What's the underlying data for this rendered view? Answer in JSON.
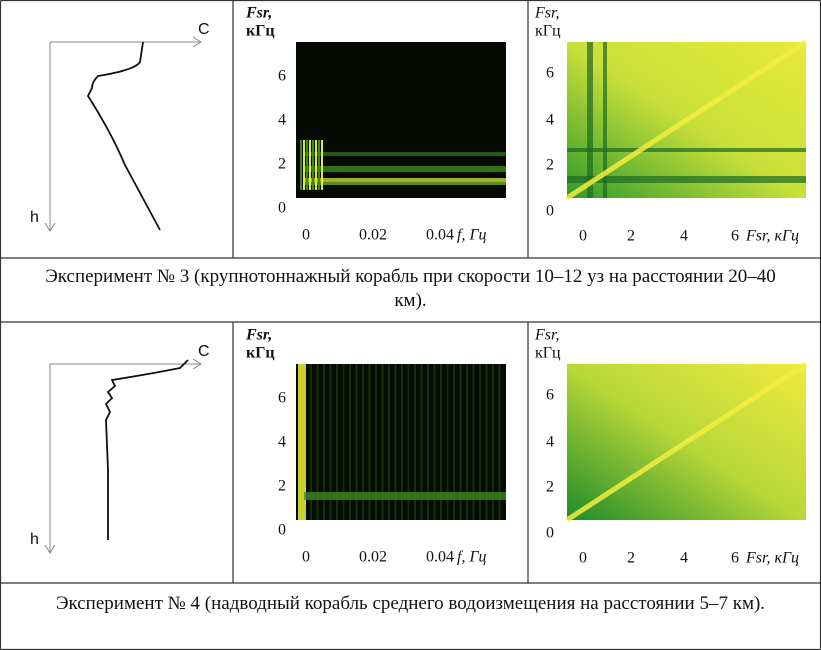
{
  "rows": [
    {
      "profile": {
        "axis_c": "C",
        "axis_h": "h"
      },
      "spectrogram": {
        "y_label": "Fsr,",
        "y_unit": "кГц",
        "y_ticks": [
          "0",
          "2",
          "4",
          "6"
        ],
        "x_ticks": [
          "0",
          "0.02",
          "0.04"
        ],
        "x_label": "f, Гц"
      },
      "correlation": {
        "y_label": "Fsr,",
        "y_unit": "кГц",
        "y_ticks": [
          "0",
          "2",
          "4",
          "6"
        ],
        "x_ticks": [
          "0",
          "2",
          "4",
          "6"
        ],
        "x_label": "Fsr, кГц"
      },
      "caption": "Эксперимент № 3 (крупнотоннажный корабль при скорости 10–12 уз на расстоянии 20–40 км)."
    },
    {
      "profile": {
        "axis_c": "C",
        "axis_h": "h"
      },
      "spectrogram": {
        "y_label": "Fsr,",
        "y_unit": "кГц",
        "y_ticks": [
          "0",
          "2",
          "4",
          "6"
        ],
        "x_ticks": [
          "0",
          "0.02",
          "0.04"
        ],
        "x_label": "f, Гц"
      },
      "correlation": {
        "y_label": "Fsr,",
        "y_unit": "кГц",
        "y_ticks": [
          "0",
          "2",
          "4",
          "6"
        ],
        "x_ticks": [
          "0",
          "2",
          "4",
          "6"
        ],
        "x_label": "Fsr, кГц"
      },
      "caption": "Эксперимент № 4 (надводный корабль среднего водоизмещения на расстоянии 5–7 км)."
    }
  ]
}
